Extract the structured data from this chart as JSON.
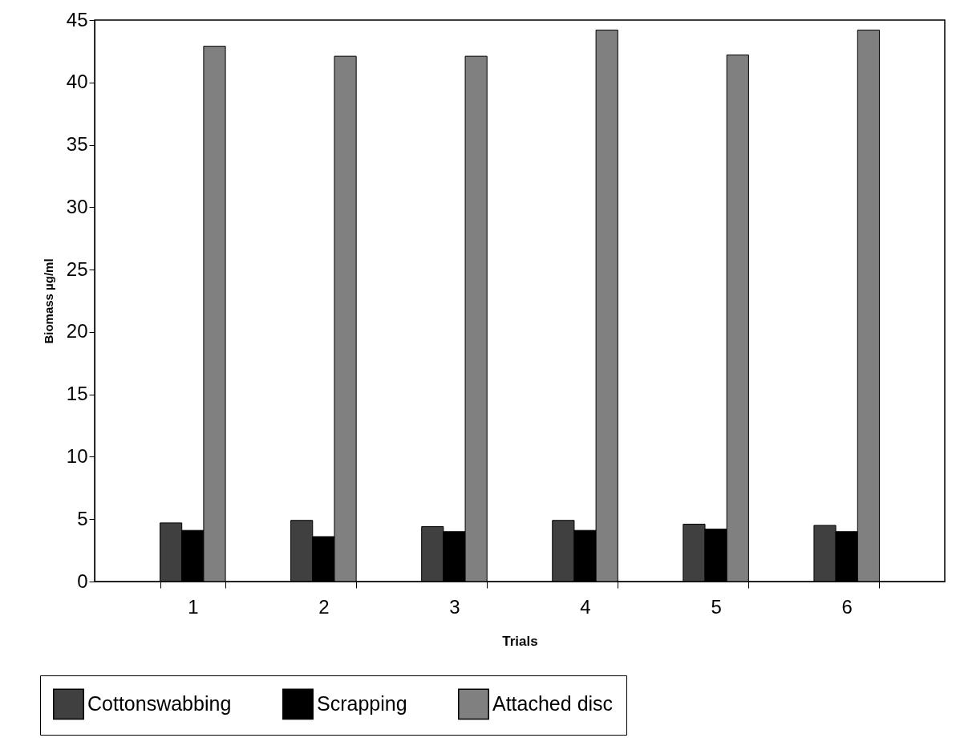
{
  "chart_data": {
    "type": "bar",
    "xlabel": "Trials",
    "ylabel": "Biomass µg/ml",
    "categories": [
      "1",
      "2",
      "3",
      "4",
      "5",
      "6"
    ],
    "series": [
      {
        "name": "Cottonswabbing",
        "color": "#404040",
        "values": [
          4.7,
          4.9,
          4.4,
          4.9,
          4.6,
          4.5
        ]
      },
      {
        "name": "Scrapping",
        "color": "#000000",
        "values": [
          4.1,
          3.6,
          4.0,
          4.1,
          4.2,
          4.0
        ]
      },
      {
        "name": "Attached disc",
        "color": "#808080",
        "values": [
          42.9,
          42.1,
          42.1,
          44.2,
          42.2,
          44.2
        ]
      }
    ],
    "ylim": [
      0,
      45
    ],
    "yticks": [
      0,
      5,
      10,
      15,
      20,
      25,
      30,
      35,
      40,
      45
    ],
    "grid": false,
    "legend": "bottom"
  }
}
